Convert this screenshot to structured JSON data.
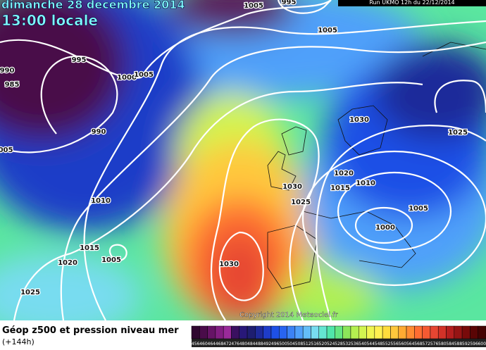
{
  "header": {
    "title": "dimanche 28 decembre 2014",
    "time": "13:00 locale",
    "run": "Run UKMO 12h du 22/12/2014"
  },
  "isobar_labels": [
    "1005",
    "995",
    "1005",
    "995",
    "990",
    "985",
    "1000",
    "1005",
    "990",
    "005",
    "1010",
    "1015",
    "1020",
    "1005",
    "1025",
    "1030",
    "1030",
    "1030",
    "1025",
    "1020",
    "1015",
    "1010",
    "1025",
    "1005",
    "1000"
  ],
  "copyright": "Copyright 2014 Meteociel.fr",
  "footer": {
    "title": "Géop z500 et pression niveau mer",
    "lead": "(+144h)"
  },
  "scale": {
    "values": [
      456,
      460,
      464,
      468,
      472,
      476,
      480,
      484,
      488,
      492,
      496,
      500,
      504,
      508,
      512,
      516,
      520,
      524,
      528,
      532,
      536,
      540,
      544,
      548,
      552,
      556,
      560,
      564,
      568,
      572,
      576,
      580,
      584,
      588,
      592,
      596,
      600
    ],
    "colors": [
      "#300830",
      "#4a0c4a",
      "#661466",
      "#821e82",
      "#9a2a9a",
      "#3a1060",
      "#281878",
      "#1e1e70",
      "#1e2a9a",
      "#1e3cc8",
      "#1e50e6",
      "#2864f0",
      "#3c82f5",
      "#50a0fa",
      "#64bef8",
      "#78dcf0",
      "#64e6d2",
      "#50e6aa",
      "#64e682",
      "#8ce65a",
      "#b4f050",
      "#d2f550",
      "#f0f550",
      "#fff050",
      "#ffdc3c",
      "#ffc83c",
      "#ffaa32",
      "#ff8c32",
      "#ff6e32",
      "#f55a32",
      "#e64632",
      "#d23228",
      "#b41e1e",
      "#961414",
      "#780a0a",
      "#5a0505",
      "#450303"
    ]
  }
}
